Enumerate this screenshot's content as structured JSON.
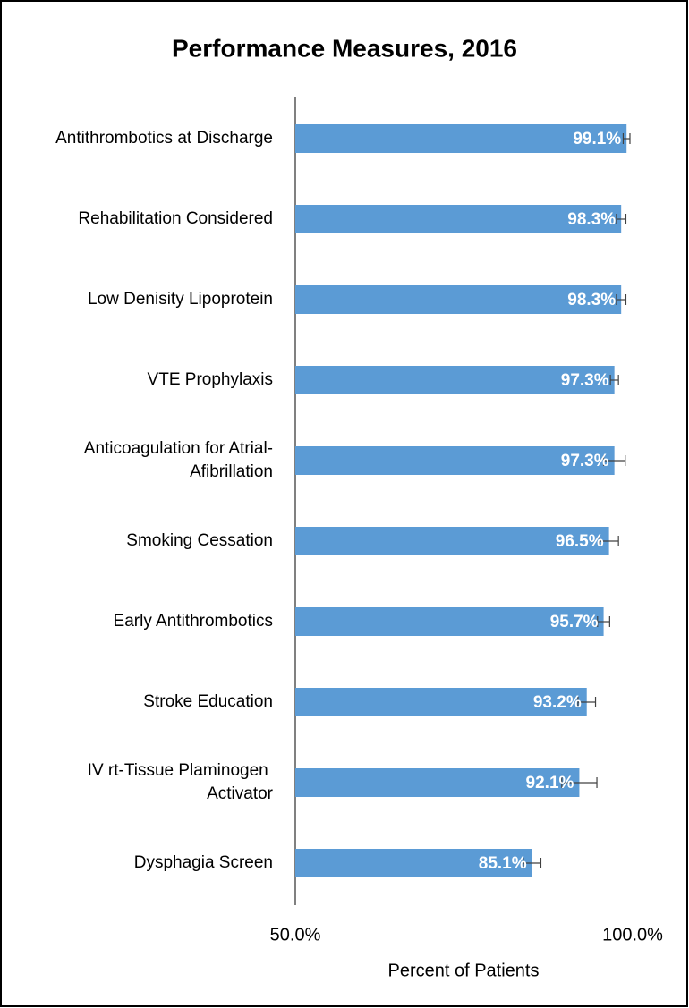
{
  "chart_data": {
    "type": "barh",
    "title": "Performance Measures, 2016",
    "categories": [
      "Antithrombotics at Discharge",
      "Rehabilitation Considered",
      "Low Denisity Lipoprotein",
      "VTE Prophylaxis",
      "Anticoagulation for Atrial-Afibrillation",
      "Smoking Cessation",
      "Early Antithrombotics",
      "Stroke Education",
      "IV rt-Tissue Plaminogen Activator",
      "Dysphagia Screen"
    ],
    "values": [
      99.1,
      98.3,
      98.3,
      97.3,
      97.3,
      96.5,
      95.7,
      93.2,
      92.1,
      85.1
    ],
    "value_labels": [
      "99.1%",
      "98.3%",
      "98.3%",
      "97.3%",
      "97.3%",
      "96.5%",
      "95.7%",
      "93.2%",
      "92.1%",
      "85.1%"
    ],
    "errors": [
      0.5,
      0.7,
      0.7,
      0.6,
      1.6,
      1.4,
      0.9,
      1.3,
      2.6,
      1.3
    ],
    "color": "#5b9bd5",
    "xlabel": "Percent of Patients",
    "xlim": [
      50,
      100
    ],
    "xticks": [
      {
        "value": 50,
        "label": "50.0%"
      },
      {
        "value": 100,
        "label": "100.0%"
      }
    ],
    "grid": false
  }
}
